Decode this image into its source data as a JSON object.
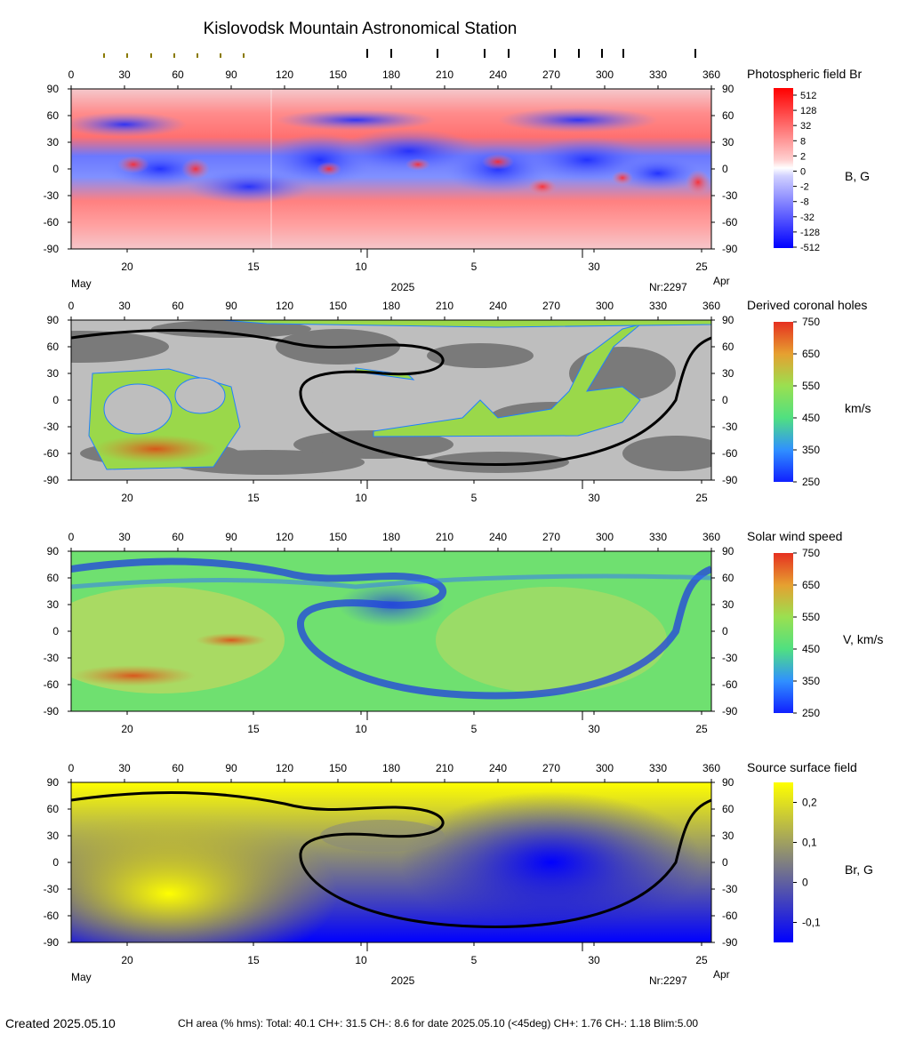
{
  "title": "Kislovodsk Mountain Astronomical Station",
  "footer": {
    "created": "Created  2025.05.10",
    "stats": "CH area (% hms): Total: 40.1 CH+: 31.5   CH-: 8.6 for date 2025.05.10 (<45deg) CH+: 1.76    CH-: 1.18 Blim:5.00"
  },
  "chart_data": [
    {
      "type": "heatmap",
      "title": "Photospheric field Br",
      "colorbar_label": "B, G",
      "colorbar_ticks": [
        "512",
        "128",
        "32",
        "8",
        "2",
        "0",
        "-2",
        "-8",
        "-32",
        "-128",
        "-512"
      ],
      "x_ticks": [
        "0",
        "30",
        "60",
        "90",
        "120",
        "150",
        "180",
        "210",
        "240",
        "270",
        "300",
        "330",
        "360"
      ],
      "xlim": [
        0,
        360
      ],
      "y_ticks": [
        "90",
        "60",
        "30",
        "0",
        "-30",
        "-60",
        "-90"
      ],
      "ylim": [
        -90,
        90
      ],
      "date_ticks": [
        "20",
        "15",
        "10",
        "5",
        "30",
        "25"
      ],
      "date_labels": {
        "left": "May",
        "center": "2025",
        "rotation": "Nr:2297",
        "right": "Apr"
      },
      "colors": {
        "positive": "#ff2020",
        "negative": "#2030ff",
        "zero": "#ffffff"
      }
    },
    {
      "type": "heatmap",
      "title": "Derived coronal holes",
      "colorbar_label": "km/s",
      "colorbar_ticks": [
        "750",
        "650",
        "550",
        "450",
        "350",
        "250"
      ],
      "clim": [
        250,
        750
      ],
      "x_ticks": [
        "0",
        "30",
        "60",
        "90",
        "120",
        "150",
        "180",
        "210",
        "240",
        "270",
        "300",
        "330",
        "360"
      ],
      "xlim": [
        0,
        360
      ],
      "y_ticks": [
        "90",
        "60",
        "30",
        "0",
        "-30",
        "-60",
        "-90"
      ],
      "ylim": [
        -90,
        90
      ],
      "date_ticks": [
        "20",
        "15",
        "10",
        "5",
        "30",
        "25"
      ],
      "colors": {
        "background_light": "#bebebe",
        "background_dark": "#7a7a7a",
        "hole": "#9ad84a",
        "neutral_line": "#000000"
      }
    },
    {
      "type": "heatmap",
      "title": "Solar wind speed",
      "colorbar_label": "V, km/s",
      "colorbar_ticks": [
        "750",
        "650",
        "550",
        "450",
        "350",
        "250"
      ],
      "clim": [
        250,
        750
      ],
      "x_ticks": [
        "0",
        "30",
        "60",
        "90",
        "120",
        "150",
        "180",
        "210",
        "240",
        "270",
        "300",
        "330",
        "360"
      ],
      "xlim": [
        0,
        360
      ],
      "y_ticks": [
        "90",
        "60",
        "30",
        "0",
        "-30",
        "-60",
        "-90"
      ],
      "ylim": [
        -90,
        90
      ],
      "date_ticks": [
        "20",
        "15",
        "10",
        "5",
        "30",
        "25"
      ],
      "colors": {
        "base": "#6fe070",
        "slow": "#2040e0",
        "fast": "#e05020"
      }
    },
    {
      "type": "heatmap",
      "title": "Source surface field",
      "colorbar_label": "Br, G",
      "colorbar_ticks": [
        "0,2",
        "0,1",
        "0",
        "-0,1"
      ],
      "clim": [
        -0.15,
        0.25
      ],
      "x_ticks": [
        "0",
        "30",
        "60",
        "90",
        "120",
        "150",
        "180",
        "210",
        "240",
        "270",
        "300",
        "330",
        "360"
      ],
      "xlim": [
        0,
        360
      ],
      "y_ticks": [
        "90",
        "60",
        "30",
        "0",
        "-30",
        "-60",
        "-90"
      ],
      "ylim": [
        -90,
        90
      ],
      "date_ticks": [
        "20",
        "15",
        "10",
        "5",
        "30",
        "25"
      ],
      "date_labels": {
        "left": "May",
        "center": "2025",
        "rotation": "Nr:2297",
        "right": "Apr"
      },
      "colors": {
        "positive": "#ffff00",
        "negative": "#0000ff",
        "zero": "#808080",
        "neutral_line": "#000000"
      }
    }
  ]
}
